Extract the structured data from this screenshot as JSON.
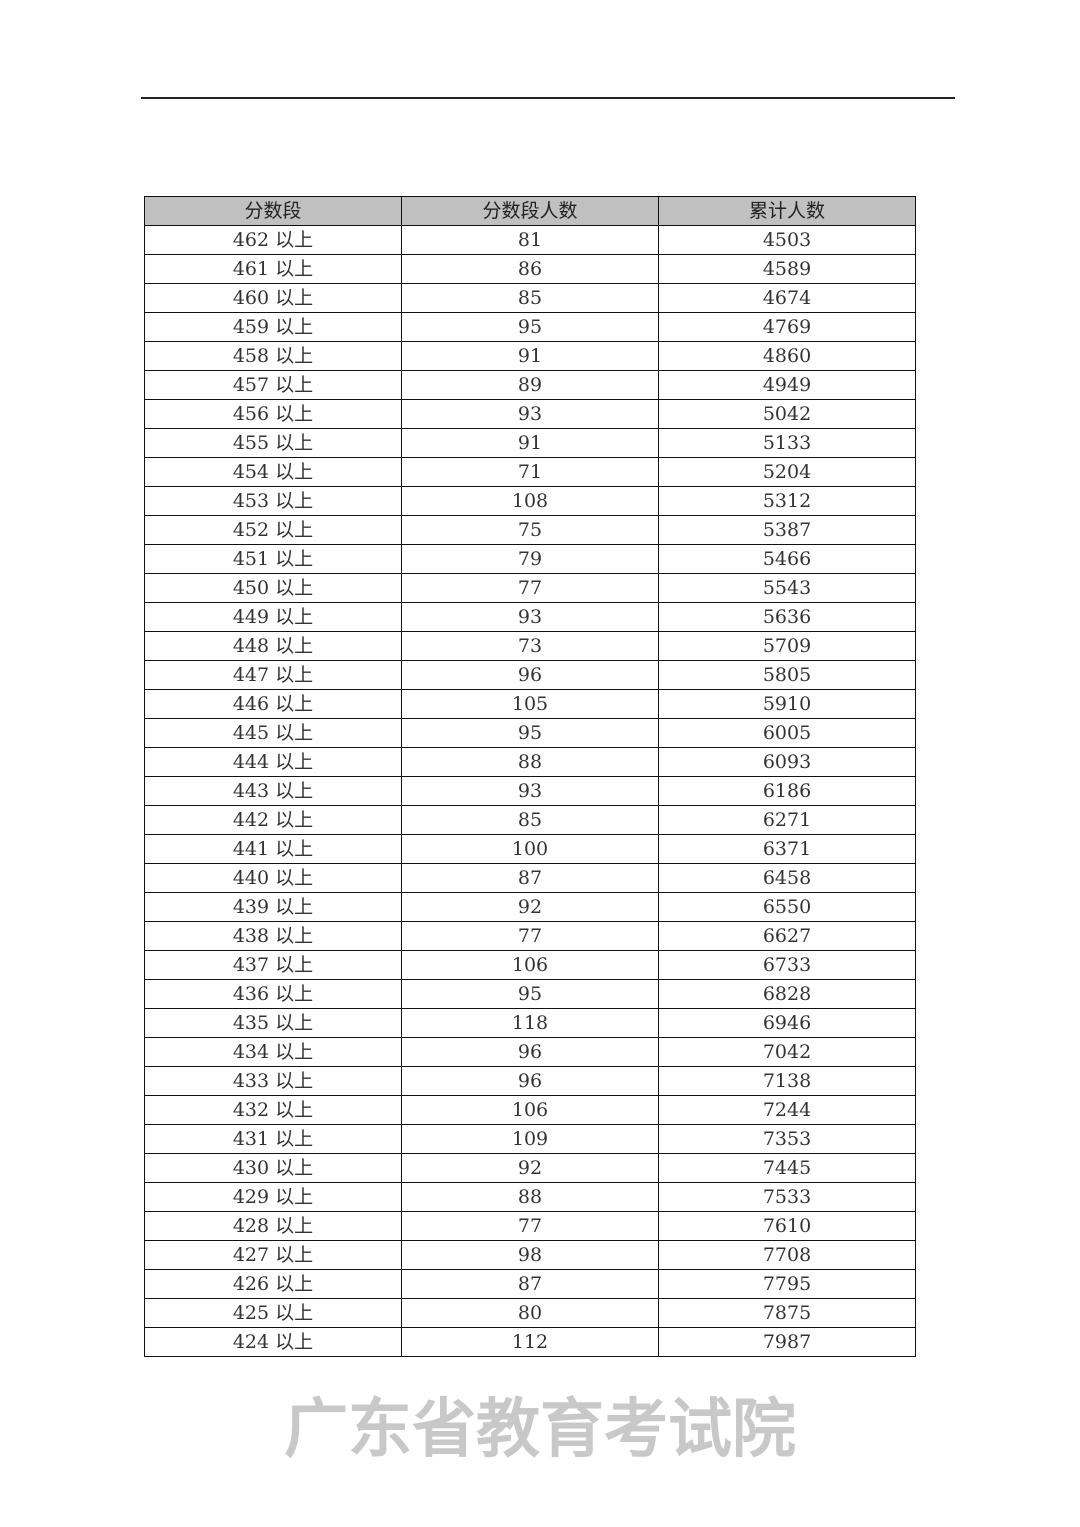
{
  "table": {
    "headers": [
      "分数段",
      "分数段人数",
      "累计人数"
    ],
    "suffix": "以上",
    "rows": [
      [
        "462 以上",
        "81",
        "4503"
      ],
      [
        "461 以上",
        "86",
        "4589"
      ],
      [
        "460 以上",
        "85",
        "4674"
      ],
      [
        "459 以上",
        "95",
        "4769"
      ],
      [
        "458 以上",
        "91",
        "4860"
      ],
      [
        "457 以上",
        "89",
        "4949"
      ],
      [
        "456 以上",
        "93",
        "5042"
      ],
      [
        "455 以上",
        "91",
        "5133"
      ],
      [
        "454 以上",
        "71",
        "5204"
      ],
      [
        "453 以上",
        "108",
        "5312"
      ],
      [
        "452 以上",
        "75",
        "5387"
      ],
      [
        "451 以上",
        "79",
        "5466"
      ],
      [
        "450 以上",
        "77",
        "5543"
      ],
      [
        "449 以上",
        "93",
        "5636"
      ],
      [
        "448 以上",
        "73",
        "5709"
      ],
      [
        "447 以上",
        "96",
        "5805"
      ],
      [
        "446 以上",
        "105",
        "5910"
      ],
      [
        "445 以上",
        "95",
        "6005"
      ],
      [
        "444 以上",
        "88",
        "6093"
      ],
      [
        "443 以上",
        "93",
        "6186"
      ],
      [
        "442 以上",
        "85",
        "6271"
      ],
      [
        "441 以上",
        "100",
        "6371"
      ],
      [
        "440 以上",
        "87",
        "6458"
      ],
      [
        "439 以上",
        "92",
        "6550"
      ],
      [
        "438 以上",
        "77",
        "6627"
      ],
      [
        "437 以上",
        "106",
        "6733"
      ],
      [
        "436 以上",
        "95",
        "6828"
      ],
      [
        "435 以上",
        "118",
        "6946"
      ],
      [
        "434 以上",
        "96",
        "7042"
      ],
      [
        "433 以上",
        "96",
        "7138"
      ],
      [
        "432 以上",
        "106",
        "7244"
      ],
      [
        "431 以上",
        "109",
        "7353"
      ],
      [
        "430 以上",
        "92",
        "7445"
      ],
      [
        "429 以上",
        "88",
        "7533"
      ],
      [
        "428 以上",
        "77",
        "7610"
      ],
      [
        "427 以上",
        "98",
        "7708"
      ],
      [
        "426 以上",
        "87",
        "7795"
      ],
      [
        "425 以上",
        "80",
        "7875"
      ],
      [
        "424 以上",
        "112",
        "7987"
      ]
    ]
  },
  "watermark": "广东省教育考试院",
  "colors": {
    "header_bg": "#c0c0c0",
    "watermark": "#c8c8c8"
  }
}
